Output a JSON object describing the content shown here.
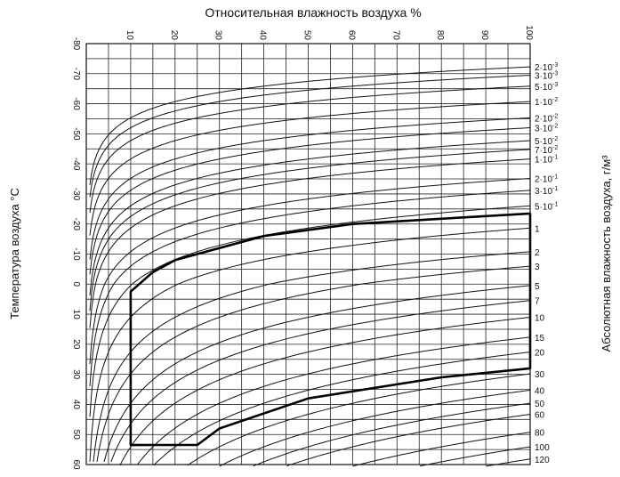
{
  "chart_data": {
    "type": "line",
    "title": "",
    "xlabel": "Относительная влажность воздуха %",
    "ylabel": "Температура воздуха °C",
    "y2label": "Абсолютная влажность воздуха, г/м³",
    "x_ticks": [
      "10",
      "20",
      "30",
      "40",
      "50",
      "60",
      "70",
      "80",
      "90",
      "100"
    ],
    "y_ticks": [
      "-80",
      "-70",
      "-60",
      "-50",
      "-40",
      "-30",
      "-20",
      "-10",
      "0",
      "10",
      "20",
      "30",
      "40",
      "50",
      "60"
    ],
    "xlim": [
      0,
      100
    ],
    "ylim": [
      -80,
      60
    ],
    "grid": true,
    "absolute_humidity_labels": [
      {
        "mantissa": "2",
        "exp": "-3",
        "value": 0.002
      },
      {
        "mantissa": "3",
        "exp": "-3",
        "value": 0.003
      },
      {
        "mantissa": "5",
        "exp": "-3",
        "value": 0.005
      },
      {
        "mantissa": "1",
        "exp": "-2",
        "value": 0.01
      },
      {
        "mantissa": "2",
        "exp": "-2",
        "value": 0.02
      },
      {
        "mantissa": "3",
        "exp": "-2",
        "value": 0.03
      },
      {
        "mantissa": "5",
        "exp": "-2",
        "value": 0.05
      },
      {
        "mantissa": "7",
        "exp": "-2",
        "value": 0.07
      },
      {
        "mantissa": "1",
        "exp": "-1",
        "value": 0.1
      },
      {
        "mantissa": "2",
        "exp": "-1",
        "value": 0.2
      },
      {
        "mantissa": "3",
        "exp": "-1",
        "value": 0.3
      },
      {
        "mantissa": "5",
        "exp": "-1",
        "value": 0.5
      },
      {
        "mantissa": "1",
        "exp": "",
        "value": 1
      },
      {
        "mantissa": "2",
        "exp": "",
        "value": 2
      },
      {
        "mantissa": "3",
        "exp": "",
        "value": 3
      },
      {
        "mantissa": "5",
        "exp": "",
        "value": 5
      },
      {
        "mantissa": "7",
        "exp": "",
        "value": 7
      },
      {
        "mantissa": "10",
        "exp": "",
        "value": 10
      },
      {
        "mantissa": "15",
        "exp": "",
        "value": 15
      },
      {
        "mantissa": "20",
        "exp": "",
        "value": 20
      },
      {
        "mantissa": "30",
        "exp": "",
        "value": 30
      },
      {
        "mantissa": "40",
        "exp": "",
        "value": 40
      },
      {
        "mantissa": "50",
        "exp": "",
        "value": 50
      },
      {
        "mantissa": "60",
        "exp": "",
        "value": 60
      },
      {
        "mantissa": "80",
        "exp": "",
        "value": 80
      },
      {
        "mantissa": "100",
        "exp": "",
        "value": 100
      },
      {
        "mantissa": "120",
        "exp": "",
        "value": 120
      }
    ],
    "highlight_region": {
      "description_points": [
        {
          "x": 10,
          "y": 53.5
        },
        {
          "x": 10,
          "y": 2.5
        },
        {
          "x": 15,
          "y": -4
        },
        {
          "x": 20,
          "y": -8
        },
        {
          "x": 40,
          "y": -16
        },
        {
          "x": 60,
          "y": -20
        },
        {
          "x": 100,
          "y": -23.5
        },
        {
          "x": 100,
          "y": 28
        },
        {
          "x": 80,
          "y": 31
        },
        {
          "x": 50,
          "y": 38
        },
        {
          "x": 30,
          "y": 48
        },
        {
          "x": 25,
          "y": 53.5
        }
      ]
    }
  }
}
